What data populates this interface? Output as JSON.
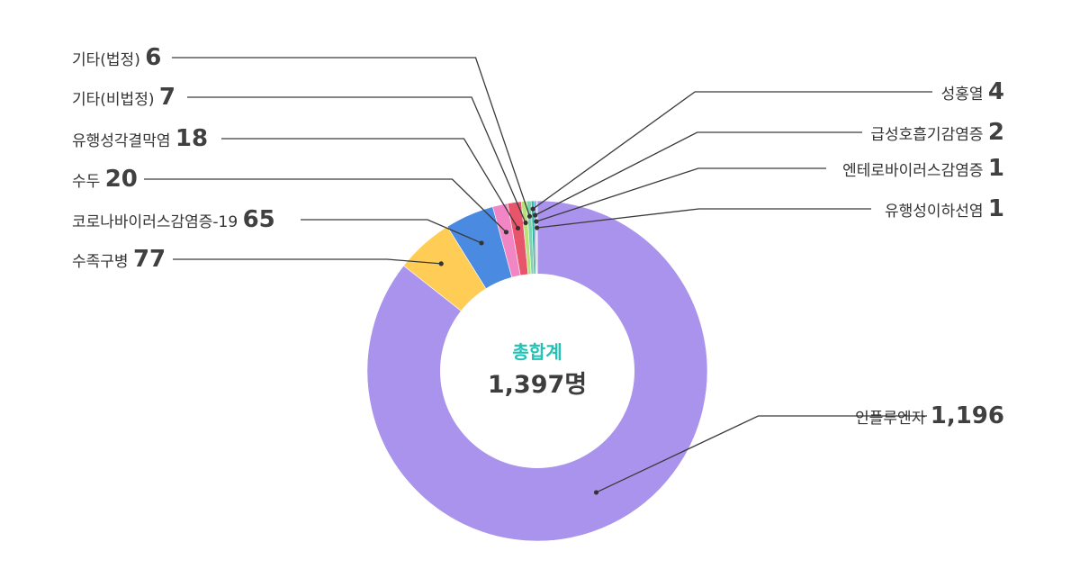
{
  "chart_data": {
    "type": "pie",
    "variant": "donut",
    "center_title": "총합계",
    "center_total": "1,397명",
    "slices": [
      {
        "name": "인플루엔자",
        "value_label": "1,196",
        "value": 1196,
        "color": "#aa93ec",
        "side": "right"
      },
      {
        "name": "수족구병",
        "value_label": "77",
        "value": 77,
        "color": "#ffcc55",
        "side": "left"
      },
      {
        "name": "코로나바이러스감염증-19",
        "value_label": "65",
        "value": 65,
        "color": "#4a8ae0",
        "side": "left"
      },
      {
        "name": "수두",
        "value_label": "20",
        "value": 20,
        "color": "#f285c3",
        "side": "left"
      },
      {
        "name": "유행성각결막염",
        "value_label": "18",
        "value": 18,
        "color": "#e8546a",
        "side": "left"
      },
      {
        "name": "기타(비법정)",
        "value_label": "7",
        "value": 7,
        "color": "#b9e07a",
        "side": "left"
      },
      {
        "name": "기타(법정)",
        "value_label": "6",
        "value": 6,
        "color": "#7fd3b0",
        "side": "left"
      },
      {
        "name": "성홍열",
        "value_label": "4",
        "value": 4,
        "color": "#2eb7a3",
        "side": "right"
      },
      {
        "name": "급성호흡기감염증",
        "value_label": "2",
        "value": 2,
        "color": "#6a74c9",
        "side": "right"
      },
      {
        "name": "엔테로바이러스감염증",
        "value_label": "1",
        "value": 1,
        "color": "#3b5fb0",
        "side": "right"
      },
      {
        "name": "유행성이하선염",
        "value_label": "1",
        "value": 1,
        "color": "#1f3f7a",
        "side": "right"
      }
    ]
  },
  "colors": {
    "center_title": "#24c1b5",
    "leader_line": "#3a3a3a"
  }
}
